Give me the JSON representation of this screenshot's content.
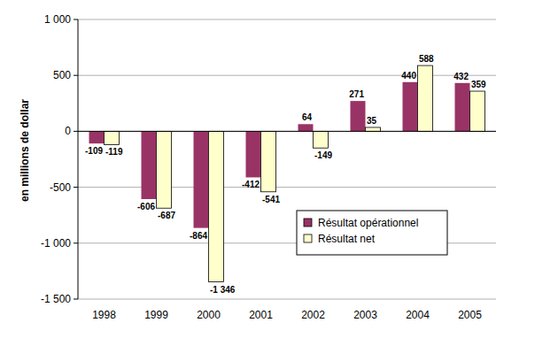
{
  "chart_data": {
    "type": "bar",
    "y_label": "en millions de dollar",
    "categories": [
      "1998",
      "1999",
      "2000",
      "2001",
      "2002",
      "2003",
      "2004",
      "2005"
    ],
    "series": [
      {
        "name": "Résultat opérationnel",
        "color": "#993366",
        "values": [
          -109,
          -606,
          -864,
          -412,
          64,
          271,
          440,
          432
        ]
      },
      {
        "name": "Résultat net",
        "color": "#ffffcc",
        "values": [
          -119,
          -687,
          -1346,
          -541,
          -149,
          35,
          588,
          359
        ],
        "value_labels": [
          "-119",
          "-687",
          "-1 346",
          "-541",
          "-149",
          "35",
          "588",
          "359"
        ]
      }
    ],
    "ylim": [
      -1500,
      1000
    ],
    "yticks": [
      {
        "value": -1500,
        "label": "-1 500"
      },
      {
        "value": -1000,
        "label": "-1 000"
      },
      -500,
      0,
      500,
      {
        "value": 1000,
        "label": "1 000"
      }
    ],
    "grid": true,
    "legend": "lower right",
    "data_labels": true
  }
}
